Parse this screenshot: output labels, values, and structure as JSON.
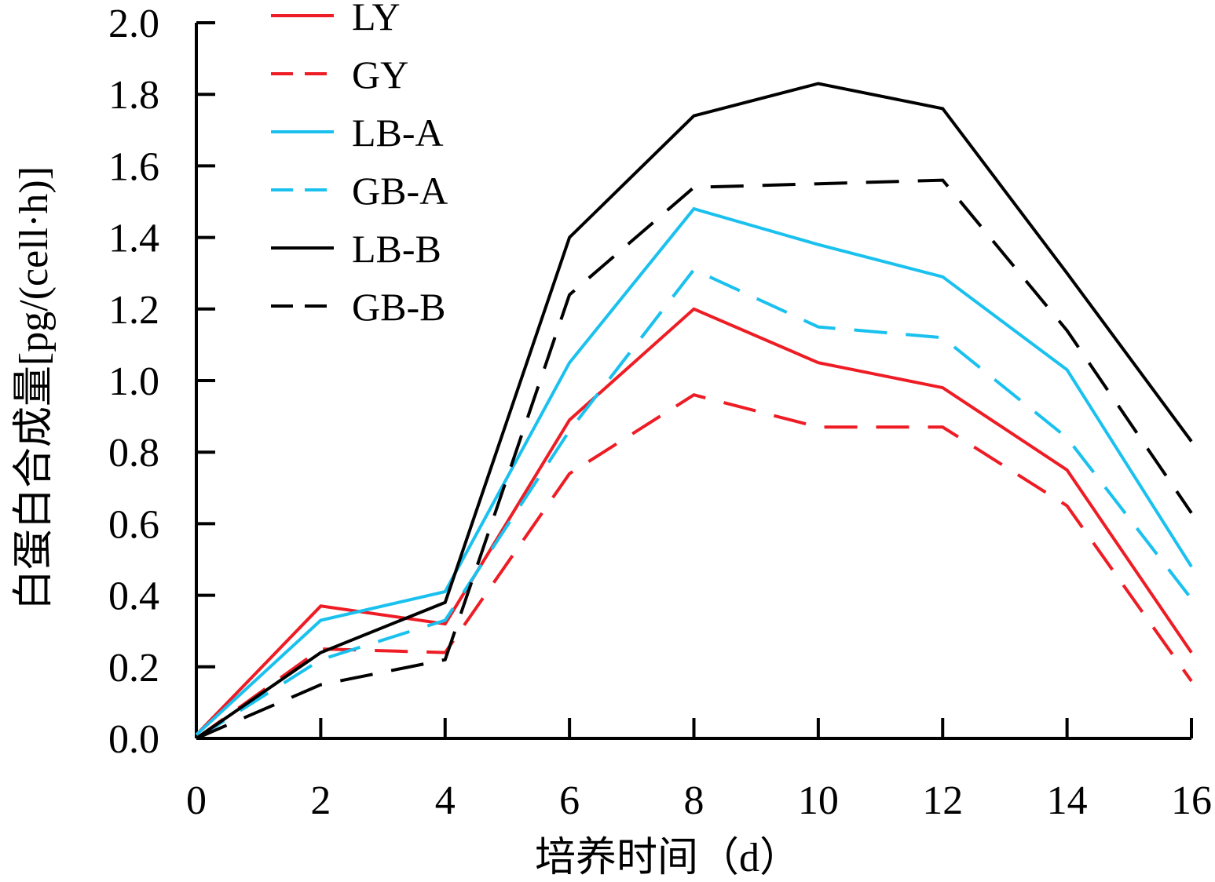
{
  "chart_data": {
    "type": "line",
    "title": "",
    "xlabel": "培养时间（d）",
    "ylabel": "白蛋白合成量[pg/(cell·h)]",
    "xlim": [
      0,
      16
    ],
    "ylim": [
      0,
      2.0
    ],
    "x_ticks": [
      0,
      2,
      4,
      6,
      8,
      10,
      12,
      14,
      16
    ],
    "x_tick_labels": [
      "0",
      "2",
      "4",
      "6",
      "8",
      "10",
      "12",
      "14",
      "16"
    ],
    "y_ticks": [
      0,
      0.2,
      0.4,
      0.6,
      0.8,
      1.0,
      1.2,
      1.4,
      1.6,
      1.8,
      2.0
    ],
    "y_tick_labels": [
      "0.0",
      "0.2",
      "0.4",
      "0.6",
      "0.8",
      "1.0",
      "1.2",
      "1.4",
      "1.6",
      "1.8",
      "2.0"
    ],
    "grid": false,
    "legend_position": "top-left",
    "x": [
      0,
      2,
      4,
      6,
      8,
      10,
      12,
      14,
      16
    ],
    "series": [
      {
        "name": "LY",
        "color": "#ee1c24",
        "dash": "solid",
        "values": [
          0.01,
          0.37,
          0.32,
          0.89,
          1.2,
          1.05,
          0.98,
          0.75,
          0.24
        ]
      },
      {
        "name": "GY",
        "color": "#ee1c24",
        "dash": "dashed",
        "values": [
          0.0,
          0.25,
          0.24,
          0.74,
          0.96,
          0.87,
          0.87,
          0.65,
          0.16
        ]
      },
      {
        "name": "LB-A",
        "color": "#1ac1ef",
        "dash": "solid",
        "values": [
          0.01,
          0.33,
          0.41,
          1.05,
          1.48,
          1.38,
          1.29,
          1.03,
          0.48
        ]
      },
      {
        "name": "GB-A",
        "color": "#1ac1ef",
        "dash": "dashed",
        "values": [
          0.0,
          0.22,
          0.33,
          0.86,
          1.31,
          1.15,
          1.12,
          0.84,
          0.39
        ]
      },
      {
        "name": "LB-B",
        "color": "#000000",
        "dash": "solid",
        "values": [
          0.0,
          0.24,
          0.38,
          1.4,
          1.74,
          1.83,
          1.76,
          1.3,
          0.83
        ]
      },
      {
        "name": "GB-B",
        "color": "#000000",
        "dash": "dashed",
        "values": [
          0.0,
          0.15,
          0.22,
          1.24,
          1.54,
          1.55,
          1.56,
          1.14,
          0.63
        ]
      }
    ]
  }
}
